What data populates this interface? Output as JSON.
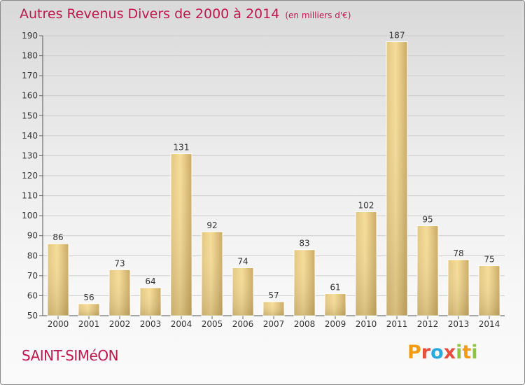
{
  "header": {
    "title": "Autres Revenus Divers de 2000 à 2014",
    "unit": "(en milliers d'€)"
  },
  "footer": {
    "commune": "SAINT-SIMéON",
    "brand": "Proxiti",
    "brand_colors": [
      "#f39c12",
      "#e84c3d",
      "#27a9e1",
      "#e84c3d",
      "#8cc63f",
      "#f39c12",
      "#8cc63f"
    ]
  },
  "colors": {
    "accent": "#c0184e",
    "bar_light": "#f6dd9a",
    "bar_dark": "#c8ad6a",
    "grid": "#cccccc"
  },
  "chart_data": {
    "type": "bar",
    "categories": [
      "2000",
      "2001",
      "2002",
      "2003",
      "2004",
      "2005",
      "2006",
      "2007",
      "2008",
      "2009",
      "2010",
      "2011",
      "2012",
      "2013",
      "2014"
    ],
    "values": [
      86,
      56,
      73,
      64,
      131,
      92,
      74,
      57,
      83,
      61,
      102,
      187,
      95,
      78,
      75
    ],
    "ylim": [
      50,
      190
    ],
    "yticks": [
      50,
      60,
      70,
      80,
      90,
      100,
      110,
      120,
      130,
      140,
      150,
      160,
      170,
      180,
      190
    ],
    "grid": true,
    "data_labels": true
  }
}
